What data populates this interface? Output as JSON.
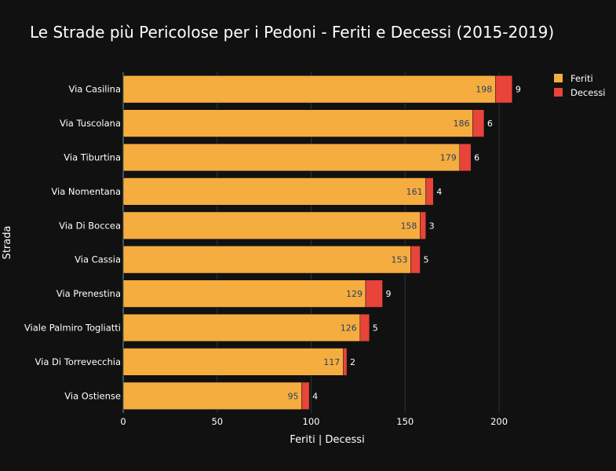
{
  "chart_data": {
    "type": "bar",
    "orientation": "horizontal",
    "barmode": "stack",
    "title": "Le Strade più Pericolose per i Pedoni - Feriti e Decessi (2015-2019)",
    "xlabel": "Feriti | Decessi",
    "ylabel": "Strada",
    "xlim": [
      0,
      210
    ],
    "xticks": [
      0,
      50,
      100,
      150,
      200
    ],
    "grid": true,
    "legend_position": "top-right",
    "categories": [
      "Via Casilina",
      "Via Tuscolana",
      "Via Tiburtina",
      "Via Nomentana",
      "Via Di Boccea",
      "Via Cassia",
      "Via Prenestina",
      "Viale Palmiro Togliatti",
      "Via Di Torrevecchia",
      "Via Ostiense"
    ],
    "series": [
      {
        "name": "Feriti",
        "color": "#F5AD40",
        "label_position": "inside",
        "values": [
          198,
          186,
          179,
          161,
          158,
          153,
          129,
          126,
          117,
          95
        ]
      },
      {
        "name": "Decessi",
        "color": "#E8443A",
        "label_position": "outside",
        "values": [
          9,
          6,
          6,
          4,
          3,
          5,
          9,
          5,
          2,
          4
        ]
      }
    ]
  },
  "colors": {
    "background": "#111111",
    "gridline": "#283442",
    "text": "#ffffff",
    "inside_label": "#2a3f5f"
  }
}
